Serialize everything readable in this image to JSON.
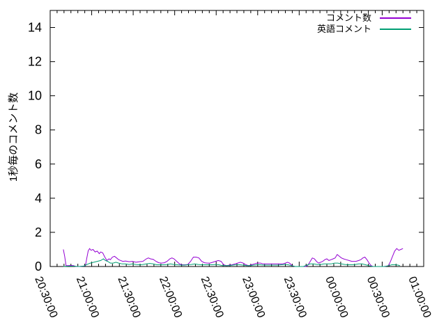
{
  "figure": {
    "background": "#ffffff",
    "border_color": "#000000",
    "text_color": "#000000"
  },
  "chart_data": {
    "type": "line",
    "title": "",
    "xlabel": "",
    "ylabel": "1秒毎のコメント数",
    "x_unit": "minutes since 20:30:00",
    "x_range": [
      0,
      270
    ],
    "x_major_step": 30,
    "x_minor_step": 5,
    "xtick_labels": [
      "20:30:00",
      "21:00:00",
      "21:30:00",
      "22:00:00",
      "22:30:00",
      "23:00:00",
      "23:30:00",
      "00:00:00",
      "00:30:00",
      "01:00:00"
    ],
    "ylim": [
      0,
      15
    ],
    "yticks": [
      0,
      2,
      4,
      6,
      8,
      10,
      12,
      14
    ],
    "grid": false,
    "legend_position": "top-right-inside",
    "series": [
      {
        "name": "コメント数",
        "color": "#9400d3",
        "points": [
          [
            9.5,
            1.0
          ],
          [
            10.5,
            0.6
          ],
          [
            11.5,
            0.05
          ],
          [
            13,
            0.05
          ],
          [
            15,
            0.06
          ],
          [
            17,
            0.05
          ],
          [
            18.5,
            0
          ],
          [
            21,
            0
          ],
          [
            24,
            0.02
          ],
          [
            25.5,
            0.05
          ],
          [
            26.5,
            0.5
          ],
          [
            27.5,
            0.92
          ],
          [
            28.5,
            1.05
          ],
          [
            29.5,
            0.95
          ],
          [
            31,
            1.0
          ],
          [
            32.5,
            0.85
          ],
          [
            34,
            0.9
          ],
          [
            35.5,
            0.75
          ],
          [
            36.5,
            0.85
          ],
          [
            38,
            0.8
          ],
          [
            39.5,
            0.55
          ],
          [
            41,
            0.35
          ],
          [
            42.5,
            0.45
          ],
          [
            43.5,
            0.4
          ],
          [
            45,
            0.55
          ],
          [
            46.5,
            0.6
          ],
          [
            48,
            0.5
          ],
          [
            49.5,
            0.4
          ],
          [
            51,
            0.35
          ],
          [
            52.5,
            0.3
          ],
          [
            54.5,
            0.32
          ],
          [
            57,
            0.28
          ],
          [
            59.5,
            0.3
          ],
          [
            62,
            0.25
          ],
          [
            64.5,
            0.28
          ],
          [
            67,
            0.3
          ],
          [
            69.5,
            0.45
          ],
          [
            71,
            0.5
          ],
          [
            72.5,
            0.45
          ],
          [
            74.5,
            0.42
          ],
          [
            76.5,
            0.3
          ],
          [
            78.5,
            0.22
          ],
          [
            80.5,
            0.2
          ],
          [
            82.5,
            0.22
          ],
          [
            84.5,
            0.3
          ],
          [
            86.5,
            0.45
          ],
          [
            88,
            0.5
          ],
          [
            89.5,
            0.45
          ],
          [
            91.5,
            0.3
          ],
          [
            93.5,
            0.15
          ],
          [
            95.5,
            0.1
          ],
          [
            97.5,
            0.1
          ],
          [
            99.5,
            0.12
          ],
          [
            101.5,
            0.3
          ],
          [
            103.5,
            0.55
          ],
          [
            105.5,
            0.55
          ],
          [
            107.5,
            0.5
          ],
          [
            109.5,
            0.3
          ],
          [
            111.5,
            0.22
          ],
          [
            113.5,
            0.2
          ],
          [
            115.5,
            0.2
          ],
          [
            117.5,
            0.25
          ],
          [
            119.5,
            0.3
          ],
          [
            121.5,
            0.35
          ],
          [
            123.5,
            0.3
          ],
          [
            125.5,
            0.1
          ],
          [
            127.5,
            0.05
          ],
          [
            129.5,
            0.08
          ],
          [
            131.5,
            0.1
          ],
          [
            133.5,
            0.15
          ],
          [
            135.5,
            0.2
          ],
          [
            137.5,
            0.25
          ],
          [
            139.5,
            0.2
          ],
          [
            141.5,
            0.1
          ],
          [
            143.5,
            0.05
          ],
          [
            145.5,
            0.1
          ],
          [
            147.5,
            0.15
          ],
          [
            149.5,
            0.2
          ],
          [
            152,
            0.2
          ],
          [
            154,
            0.15
          ],
          [
            156,
            0.15
          ],
          [
            160,
            0.15
          ],
          [
            164,
            0.15
          ],
          [
            168,
            0.15
          ],
          [
            170,
            0.2
          ],
          [
            171.5,
            0.25
          ],
          [
            173,
            0.2
          ],
          [
            175,
            0.05
          ],
          [
            177,
            0
          ],
          [
            181,
            0
          ],
          [
            185,
            0
          ],
          [
            186.5,
            0.1
          ],
          [
            188,
            0.3
          ],
          [
            189.5,
            0.5
          ],
          [
            191,
            0.45
          ],
          [
            192.5,
            0.3
          ],
          [
            194,
            0.2
          ],
          [
            195.5,
            0.25
          ],
          [
            197,
            0.3
          ],
          [
            198.5,
            0.4
          ],
          [
            200,
            0.45
          ],
          [
            201.5,
            0.35
          ],
          [
            203,
            0.4
          ],
          [
            204.5,
            0.45
          ],
          [
            206,
            0.5
          ],
          [
            207.5,
            0.7
          ],
          [
            209,
            0.6
          ],
          [
            210.5,
            0.5
          ],
          [
            212,
            0.45
          ],
          [
            214,
            0.4
          ],
          [
            216,
            0.35
          ],
          [
            218,
            0.3
          ],
          [
            221,
            0.3
          ],
          [
            223,
            0.35
          ],
          [
            224.5,
            0.4
          ],
          [
            226,
            0.5
          ],
          [
            227.5,
            0.55
          ],
          [
            229,
            0.4
          ],
          [
            230.5,
            0.2
          ],
          [
            232,
            0.05
          ],
          [
            233.5,
            0
          ],
          [
            237,
            0
          ],
          [
            241,
            0
          ],
          [
            243,
            0.02
          ],
          [
            244.5,
            0.05
          ],
          [
            246,
            0.3
          ],
          [
            247.5,
            0.6
          ],
          [
            249,
            0.9
          ],
          [
            250.5,
            1.05
          ],
          [
            252,
            0.95
          ],
          [
            253.5,
            1.0
          ],
          [
            255,
            1.05
          ]
        ]
      },
      {
        "name": "英語コメント",
        "color": "#009e73",
        "points": [
          [
            9.5,
            0
          ],
          [
            13,
            0.02
          ],
          [
            17,
            0.02
          ],
          [
            21,
            0
          ],
          [
            24.5,
            0.03
          ],
          [
            26.5,
            0.12
          ],
          [
            29,
            0.2
          ],
          [
            31.5,
            0.25
          ],
          [
            34,
            0.3
          ],
          [
            36.5,
            0.35
          ],
          [
            38.5,
            0.45
          ],
          [
            40,
            0.35
          ],
          [
            41.5,
            0.3
          ],
          [
            43.5,
            0.2
          ],
          [
            45.5,
            0.2
          ],
          [
            47.5,
            0.25
          ],
          [
            49.5,
            0.2
          ],
          [
            52,
            0.15
          ],
          [
            54.5,
            0.15
          ],
          [
            57,
            0.12
          ],
          [
            59.5,
            0.15
          ],
          [
            62,
            0.12
          ],
          [
            64.5,
            0.1
          ],
          [
            67,
            0.12
          ],
          [
            69.5,
            0.15
          ],
          [
            72,
            0.18
          ],
          [
            74.5,
            0.15
          ],
          [
            77,
            0.1
          ],
          [
            79.5,
            0.1
          ],
          [
            82,
            0.1
          ],
          [
            84.5,
            0.12
          ],
          [
            87,
            0.15
          ],
          [
            89.5,
            0.12
          ],
          [
            92,
            0.1
          ],
          [
            94.5,
            0.08
          ],
          [
            97,
            0.08
          ],
          [
            99.5,
            0.1
          ],
          [
            102,
            0.12
          ],
          [
            104.5,
            0.15
          ],
          [
            107,
            0.12
          ],
          [
            109.5,
            0.1
          ],
          [
            112,
            0.1
          ],
          [
            114.5,
            0.1
          ],
          [
            117,
            0.1
          ],
          [
            119.5,
            0.12
          ],
          [
            122,
            0.1
          ],
          [
            124.5,
            0.05
          ],
          [
            127,
            0.05
          ],
          [
            129.5,
            0.05
          ],
          [
            132,
            0.08
          ],
          [
            134.5,
            0.1
          ],
          [
            137,
            0.1
          ],
          [
            139.5,
            0.08
          ],
          [
            142,
            0.05
          ],
          [
            144.5,
            0.05
          ],
          [
            147,
            0.08
          ],
          [
            149.5,
            0.1
          ],
          [
            152,
            0.1
          ],
          [
            154.5,
            0.08
          ],
          [
            157,
            0.08
          ],
          [
            159.5,
            0.08
          ],
          [
            162,
            0.08
          ],
          [
            164.5,
            0.08
          ],
          [
            167,
            0.1
          ],
          [
            169.5,
            0.12
          ],
          [
            172,
            0.1
          ],
          [
            174.5,
            0.05
          ],
          [
            177,
            0
          ],
          [
            180,
            0
          ],
          [
            183,
            0
          ],
          [
            185.5,
            0.08
          ],
          [
            188,
            0.15
          ],
          [
            190.5,
            0.15
          ],
          [
            193,
            0.12
          ],
          [
            195.5,
            0.12
          ],
          [
            198,
            0.15
          ],
          [
            200.5,
            0.15
          ],
          [
            203,
            0.15
          ],
          [
            205.5,
            0.2
          ],
          [
            208,
            0.2
          ],
          [
            210.5,
            0.15
          ],
          [
            213,
            0.12
          ],
          [
            215.5,
            0.1
          ],
          [
            218,
            0.1
          ],
          [
            220.5,
            0.12
          ],
          [
            223,
            0.15
          ],
          [
            225.5,
            0.15
          ],
          [
            228,
            0.1
          ],
          [
            230.5,
            0.05
          ],
          [
            233,
            0
          ],
          [
            236,
            0
          ],
          [
            239,
            0
          ],
          [
            242,
            0
          ],
          [
            244.5,
            0.05
          ],
          [
            247,
            0.1
          ],
          [
            249.5,
            0.1
          ],
          [
            251.5,
            0.08
          ],
          [
            252.8,
            0.05
          ]
        ]
      }
    ]
  }
}
